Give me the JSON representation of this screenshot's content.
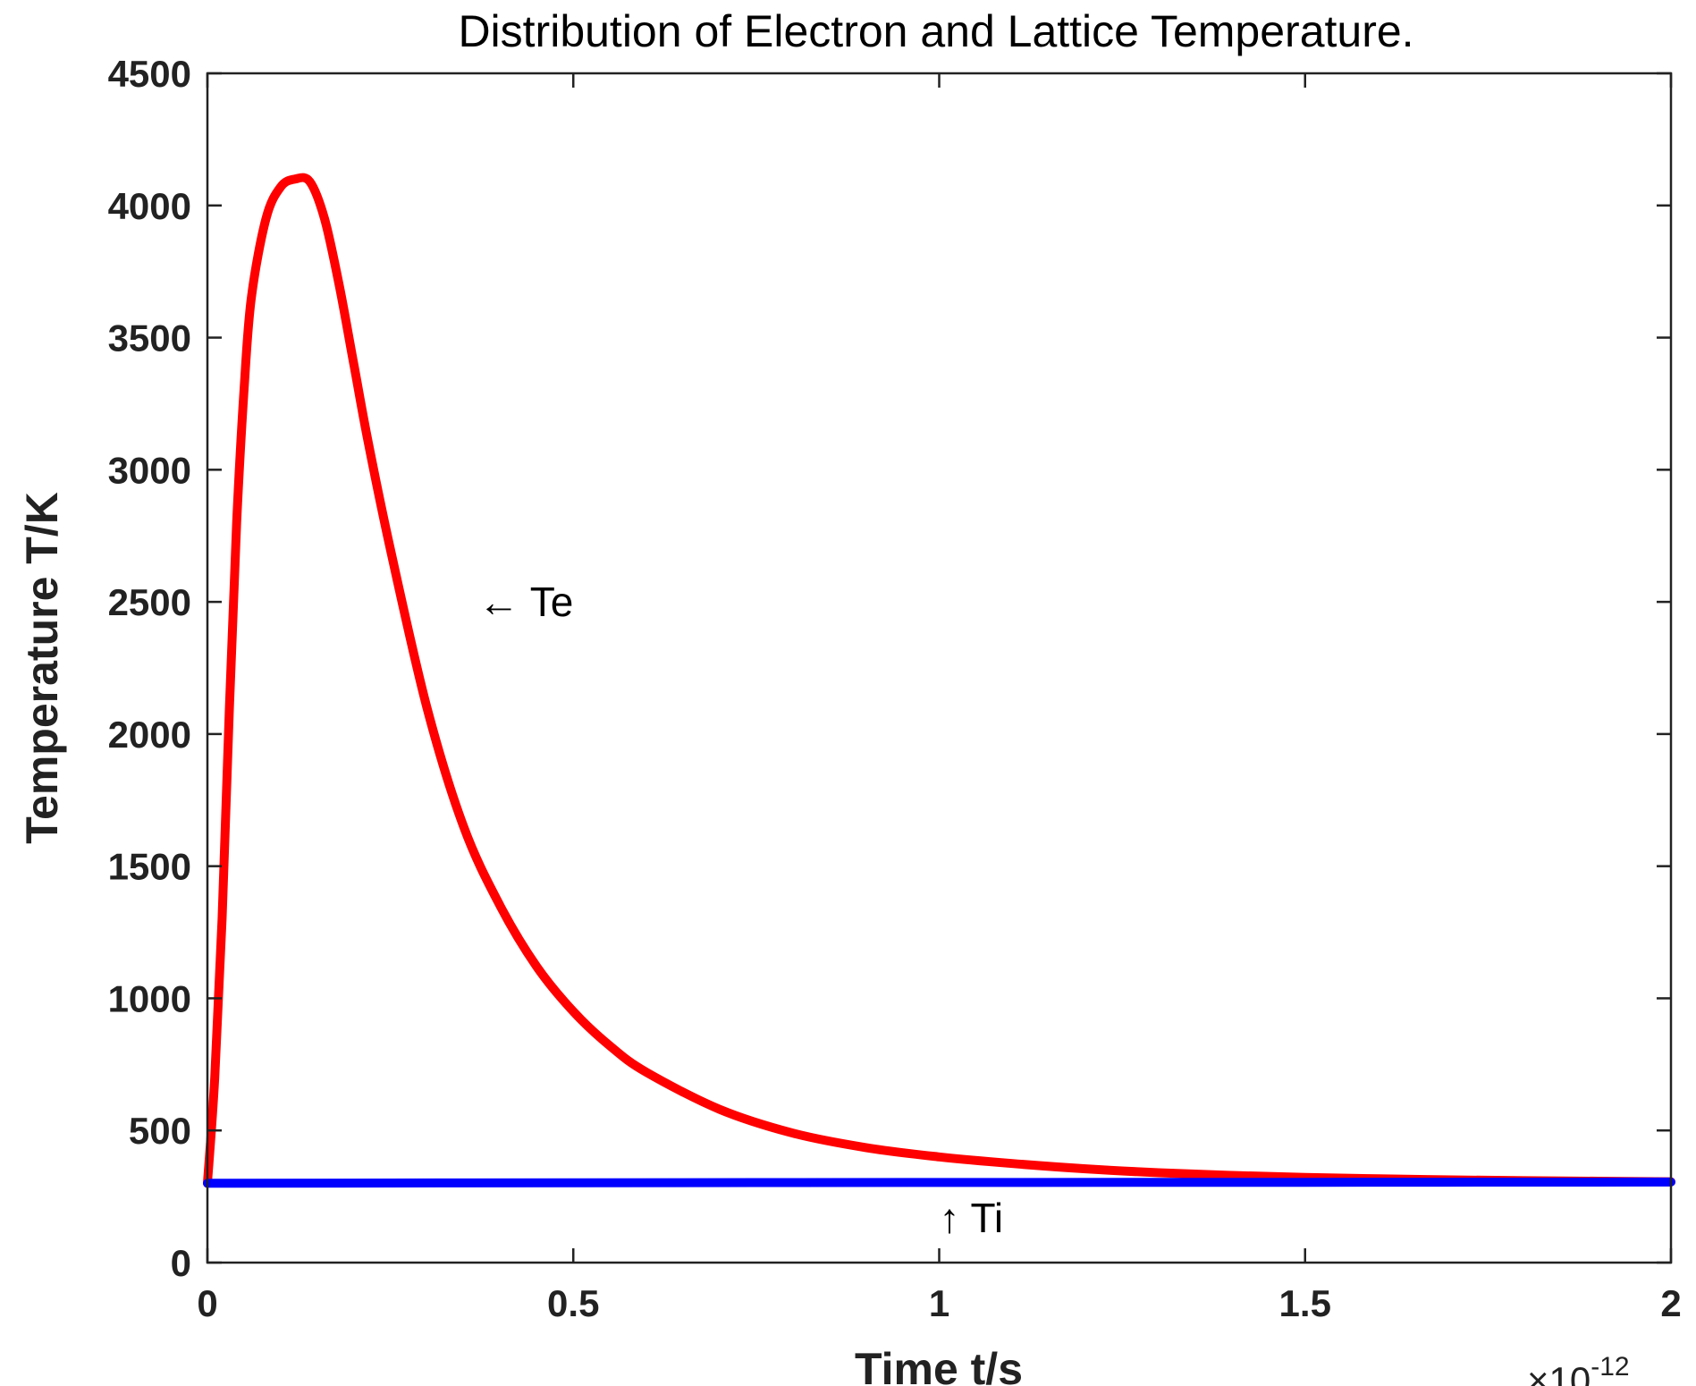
{
  "chart_data": {
    "type": "line",
    "title": "Distribution of Electron and Lattice Temperature.",
    "xlabel": "Time t/s",
    "ylabel": "Temperature T/K",
    "x_multiplier_base": "×10",
    "x_multiplier_exponent": "-12",
    "xlim": [
      0,
      2
    ],
    "ylim": [
      0,
      4500
    ],
    "xticks": [
      0,
      0.5,
      1,
      1.5,
      2
    ],
    "xtick_labels": [
      "0",
      "0.5",
      "1",
      "1.5",
      "2"
    ],
    "yticks": [
      0,
      500,
      1000,
      1500,
      2000,
      2500,
      3000,
      3500,
      4000,
      4500
    ],
    "ytick_labels": [
      "0",
      "500",
      "1000",
      "1500",
      "2000",
      "2500",
      "3000",
      "3500",
      "4000",
      "4500"
    ],
    "grid": false,
    "series": [
      {
        "name": "Te",
        "color": "#ff0000",
        "x": [
          0,
          0.01,
          0.02,
          0.03,
          0.04,
          0.05,
          0.06,
          0.08,
          0.1,
          0.12,
          0.14,
          0.16,
          0.18,
          0.2,
          0.22,
          0.25,
          0.3,
          0.35,
          0.4,
          0.45,
          0.5,
          0.55,
          0.6,
          0.7,
          0.8,
          0.9,
          1.0,
          1.1,
          1.2,
          1.3,
          1.4,
          1.5,
          1.6,
          1.7,
          1.8,
          1.9,
          2.0
        ],
        "y": [
          300,
          700,
          1300,
          2100,
          2800,
          3300,
          3650,
          3950,
          4070,
          4100,
          4090,
          3950,
          3700,
          3400,
          3100,
          2700,
          2100,
          1650,
          1350,
          1120,
          950,
          820,
          720,
          580,
          490,
          435,
          400,
          375,
          355,
          340,
          330,
          322,
          317,
          313,
          310,
          308,
          306
        ]
      },
      {
        "name": "Ti",
        "color": "#0000ff",
        "x": [
          0,
          0.5,
          1.0,
          1.5,
          2.0
        ],
        "y": [
          300,
          302,
          303,
          304,
          305
        ]
      }
    ],
    "annotations": [
      {
        "text": "← Te",
        "x": 0.37,
        "y": 2500
      },
      {
        "text": "↑ Ti",
        "x": 1.0,
        "y": 170
      }
    ]
  }
}
